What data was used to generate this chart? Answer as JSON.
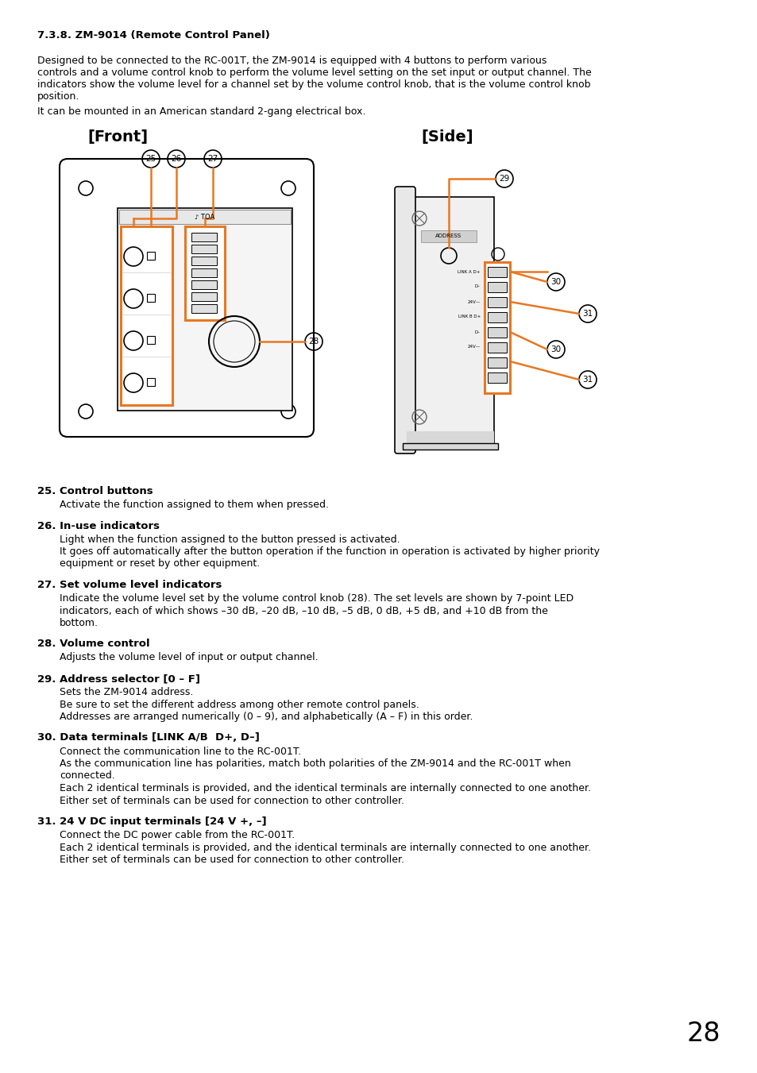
{
  "title": "7.3.8. ZM-9014 (Remote Control Panel)",
  "bg_color": "#ffffff",
  "text_color": "#000000",
  "orange_color": "#e87722",
  "page_number": "28",
  "intro_line1": "Designed to be connected to the RC-001T, the ZM-9014 is equipped with 4 buttons to perform various",
  "intro_line2": "controls and a volume control knob to perform the volume level setting on the set input or output channel. The",
  "intro_line3": "indicators show the volume level for a channel set by the volume control knob, that is the volume control knob",
  "intro_line4": "position.",
  "intro_line5": "It can be mounted in an American standard 2-gang electrical box.",
  "front_label": "[Front]",
  "side_label": "[Side]",
  "items": [
    {
      "num": "25",
      "bold": "Control buttons",
      "body": [
        "Activate the function assigned to them when pressed."
      ]
    },
    {
      "num": "26",
      "bold": "In-use indicators",
      "body": [
        "Light when the function assigned to the button pressed is activated.",
        "It goes off automatically after the button operation if the function in operation is activated by higher priority",
        "equipment or reset by other equipment."
      ]
    },
    {
      "num": "27",
      "bold": "Set volume level indicators",
      "body": [
        "Indicate the volume level set by the volume control knob (28). The set levels are shown by 7-point LED",
        "indicators, each of which shows –30 dB, –20 dB, –10 dB, –5 dB, 0 dB, +5 dB, and +10 dB from the",
        "bottom."
      ]
    },
    {
      "num": "28",
      "bold": "Volume control",
      "body": [
        "Adjusts the volume level of input or output channel."
      ]
    },
    {
      "num": "29",
      "bold": "Address selector [0 – F]",
      "body": [
        "Sets the ZM-9014 address.",
        "Be sure to set the different address among other remote control panels.",
        "Addresses are arranged numerically (0 – 9), and alphabetically (A – F) in this order."
      ]
    },
    {
      "num": "30",
      "bold": "Data terminals [LINK A/B  D+, D–]",
      "body": [
        "Connect the communication line to the RC-001T.",
        "As the communication line has polarities, match both polarities of the ZM-9014 and the RC-001T when",
        "connected.",
        "Each 2 identical terminals is provided, and the identical terminals are internally connected to one another.",
        "Either set of terminals can be used for connection to other controller."
      ]
    },
    {
      "num": "31",
      "bold": "24 V DC input terminals [24 V +, –]",
      "body": [
        "Connect the DC power cable from the RC-001T.",
        "Each 2 identical terminals is provided, and the identical terminals are internally connected to one another.",
        "Either set of terminals can be used for connection to other controller."
      ]
    }
  ]
}
